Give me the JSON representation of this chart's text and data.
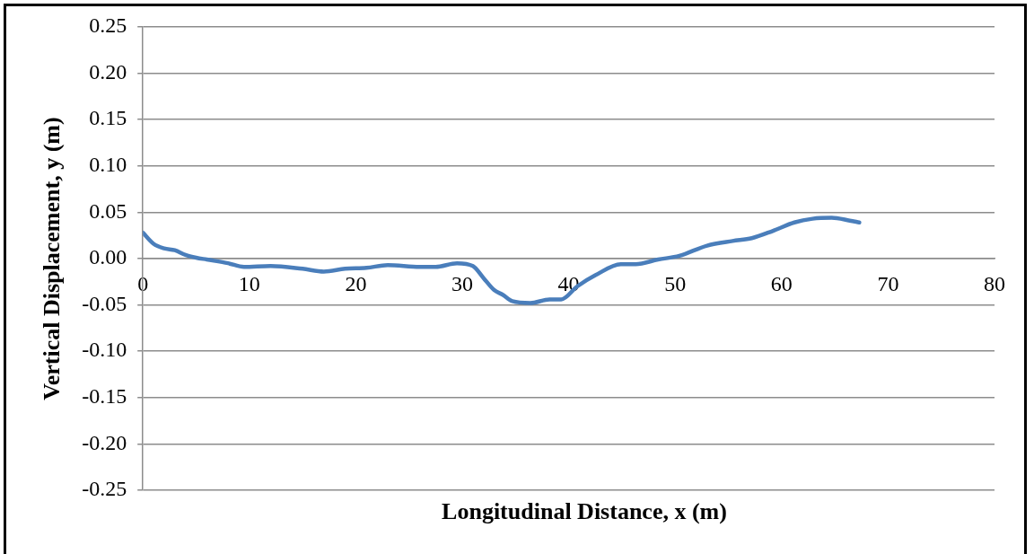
{
  "chart_data": {
    "type": "line",
    "xlabel": "Longitudinal Distance, x (m)",
    "ylabel": "Vertical Displacement, y (m)",
    "xlim": [
      0,
      80
    ],
    "xticks": [
      0,
      10,
      20,
      30,
      40,
      50,
      60,
      70,
      80
    ],
    "ylim": [
      -0.25,
      0.25
    ],
    "yticks": [
      {
        "value": -0.25,
        "label": "-0.25"
      },
      {
        "value": -0.2,
        "label": "-0.20"
      },
      {
        "value": -0.15,
        "label": "-0.15"
      },
      {
        "value": -0.1,
        "label": "-0.10"
      },
      {
        "value": -0.05,
        "label": "-0.05"
      },
      {
        "value": 0,
        "label": "0.00"
      },
      {
        "value": 0.05,
        "label": "0.05"
      },
      {
        "value": 0.1,
        "label": "0.10"
      },
      {
        "value": 0.15,
        "label": "0.15"
      },
      {
        "value": 0.2,
        "label": "0.20"
      },
      {
        "value": 0.25,
        "label": "0.25"
      }
    ],
    "grid": "y",
    "legend": false,
    "marker": "none",
    "line_style": "solid",
    "series": [
      {
        "color": "#4a7ebb",
        "x": [
          0,
          1,
          2,
          3,
          4,
          5,
          6,
          8,
          9.5,
          12,
          15,
          17,
          19,
          21,
          23,
          26,
          27.5,
          29.5,
          31,
          32,
          33,
          33.8,
          34.7,
          36.4,
          38.2,
          39.3,
          40.8,
          42.5,
          44.9,
          46.3,
          48.4,
          50.4,
          53,
          55.4,
          57.2,
          59.2,
          61.2,
          62.9,
          64.7,
          66.4,
          67.3
        ],
        "values": [
          0.028,
          0.016,
          0.011,
          0.009,
          0.004,
          0.001,
          -0.001,
          -0.005,
          -0.009,
          -0.008,
          -0.011,
          -0.014,
          -0.011,
          -0.01,
          -0.007,
          -0.009,
          -0.009,
          -0.005,
          -0.008,
          -0.021,
          -0.034,
          -0.039,
          -0.046,
          -0.048,
          -0.044,
          -0.044,
          -0.03,
          -0.018,
          -0.006,
          -0.006,
          -0.001,
          0.003,
          0.014,
          0.019,
          0.022,
          0.03,
          0.039,
          0.043,
          0.044,
          0.041,
          0.039
        ]
      }
    ]
  }
}
